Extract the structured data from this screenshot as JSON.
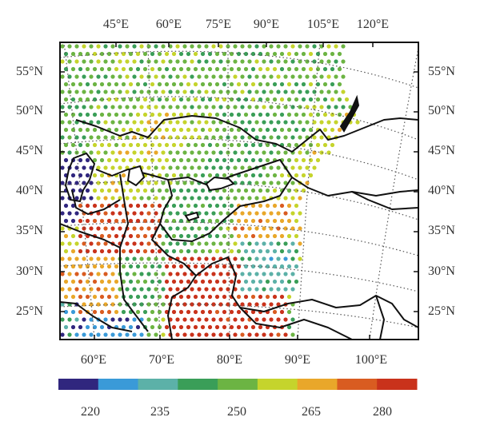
{
  "map": {
    "top_lon_labels": [
      "45°E",
      "60°E",
      "75°E",
      "90°E",
      "105°E",
      "120°E"
    ],
    "bottom_lon_labels": [
      "60°E",
      "70°E",
      "80°E",
      "90°E",
      "100°E"
    ],
    "left_lat_labels": [
      "55°N",
      "50°N",
      "45°N",
      "40°N",
      "35°N",
      "30°N",
      "25°N"
    ],
    "right_lat_labels": [
      "55°N",
      "50°N",
      "45°N",
      "40°N",
      "35°N",
      "30°N",
      "25°N"
    ],
    "extent": {
      "lon_min": 55,
      "lon_max": 105,
      "lat_min": 21,
      "lat_max": 58
    },
    "graticule": "dotted"
  },
  "colorbar": {
    "colors": [
      "#30267e",
      "#3a9ad8",
      "#5cb1a8",
      "#3a9e58",
      "#6cb443",
      "#c5d42c",
      "#e9a72a",
      "#d95c21",
      "#c9321b"
    ],
    "tick_labels": [
      "220",
      "235",
      "250",
      "265",
      "280"
    ],
    "min": 215,
    "max": 285
  },
  "chart_data": {
    "type": "scatter",
    "description_units": "station values (colorbar 215–285)",
    "value_range": [
      215,
      285
    ]
  }
}
